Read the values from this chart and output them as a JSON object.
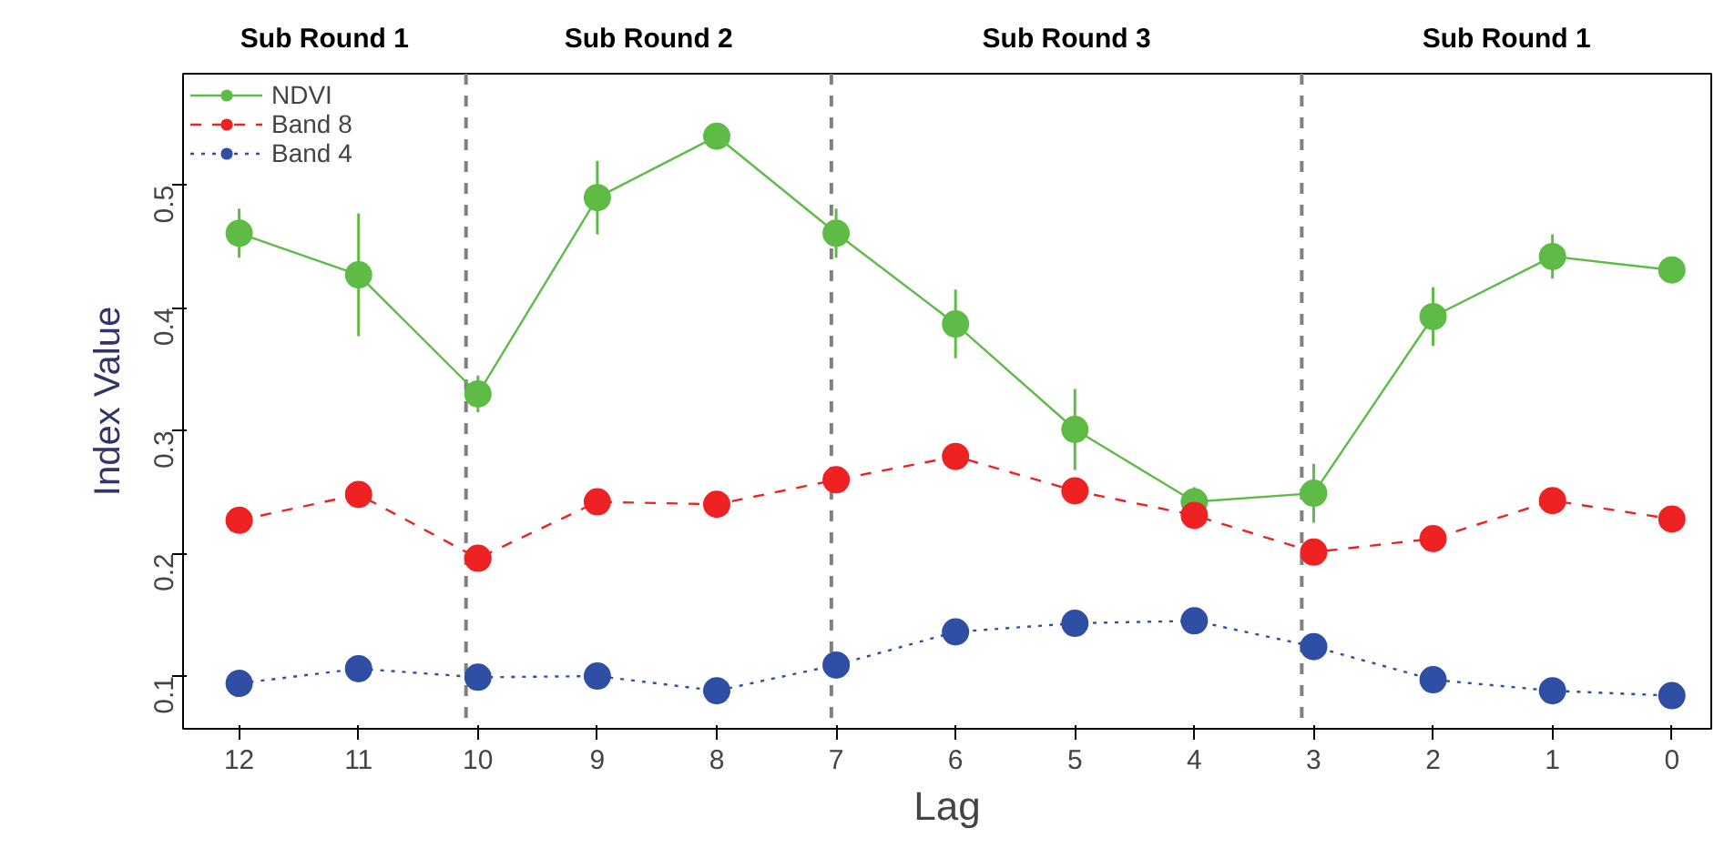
{
  "chart_data": {
    "type": "line",
    "xlabel": "Lag",
    "ylabel": "Index Value",
    "x": [
      12,
      11,
      10,
      9,
      8,
      7,
      6,
      5,
      4,
      3,
      2,
      1,
      0
    ],
    "xlim": [
      12.47,
      -0.33
    ],
    "xticks": [
      12,
      11,
      10,
      9,
      8,
      7,
      6,
      5,
      4,
      3,
      2,
      1,
      0
    ],
    "ylim": [
      0.057,
      0.591
    ],
    "yticks": [
      0.1,
      0.2,
      0.3,
      0.4,
      0.5
    ],
    "marker": "circle",
    "grid": false,
    "legend": "top left",
    "series": [
      {
        "name": "NDVI",
        "color": "#5dbb46",
        "line_style": "solid",
        "values": [
          0.461,
          0.427,
          0.33,
          0.49,
          0.54,
          0.461,
          0.387,
          0.301,
          0.242,
          0.249,
          0.393,
          0.442,
          0.431
        ],
        "errors": [
          0.02,
          0.05,
          0.015,
          0.03,
          null,
          0.02,
          0.028,
          0.033,
          0.012,
          0.024,
          0.024,
          0.018,
          null
        ]
      },
      {
        "name": "Band 8",
        "color": "#ee2222",
        "line_style": "dashed",
        "values": [
          0.227,
          0.248,
          0.196,
          0.242,
          0.24,
          0.26,
          0.279,
          0.251,
          0.231,
          0.201,
          0.212,
          0.243,
          0.228
        ]
      },
      {
        "name": "Band 4",
        "color": "#2e4fa3",
        "line_style": "dotted",
        "values": [
          0.094,
          0.106,
          0.099,
          0.1,
          0.088,
          0.109,
          0.136,
          0.143,
          0.145,
          0.124,
          0.097,
          0.088,
          0.084
        ]
      }
    ],
    "ref_lines": [
      {
        "axis": "x",
        "value": 10.1,
        "color": "#808080",
        "line_style": "dashed"
      },
      {
        "axis": "x",
        "value": 7.04,
        "color": "#808080",
        "line_style": "dashed"
      },
      {
        "axis": "x",
        "value": 3.1,
        "color": "#808080",
        "line_style": "dashed"
      }
    ],
    "annotations": [
      "Sub Round 1",
      "Sub Round 2",
      "Sub Round 3",
      "Sub Round 1"
    ]
  }
}
